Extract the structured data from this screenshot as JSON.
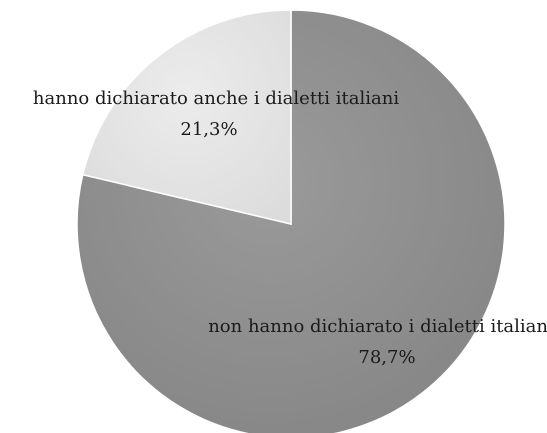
{
  "chart_data": {
    "type": "pie",
    "title": "",
    "slices": [
      {
        "label": "non hanno dichiarato i dialetti italiani",
        "value": 78.7,
        "value_label": "78,7%",
        "color": "#8e8e8e"
      },
      {
        "label": "hanno dichiarato anche i dialetti italiani",
        "value": 21.3,
        "value_label": "21,3%",
        "color": "#e3e3e3"
      }
    ],
    "start_angle": "12 o'clock",
    "direction": "clockwise",
    "legend": "none"
  }
}
